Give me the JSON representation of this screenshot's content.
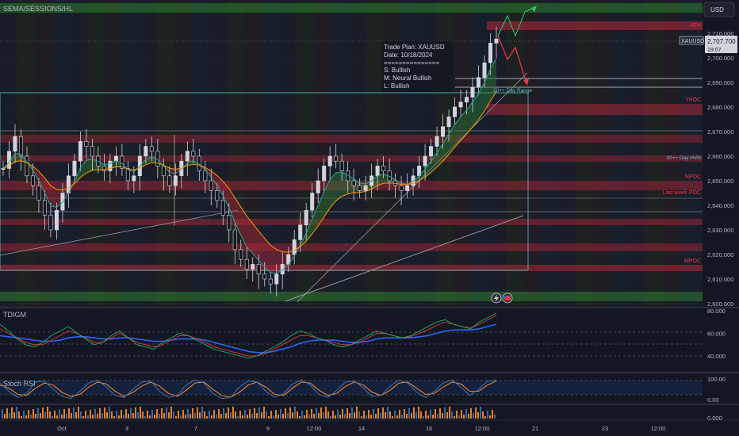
{
  "colors": {
    "bg": "#131722",
    "candle": "#d1d4dc",
    "ema_fast": "#26a69a",
    "ema_slow": "#ff9800",
    "red_zone": "#b2283a",
    "green_zone": "#2e7d32",
    "grid": "#2a2e39",
    "axis_text": "#b2b5be",
    "label_red": "#f23645",
    "label_teal": "#5fc5d0",
    "tdi_green": "#22ab6b",
    "tdi_red": "#e53935",
    "tdi_blue": "#2962ff",
    "stoch_blue": "#3f72af",
    "stoch_orange": "#ff8c2a"
  },
  "header": {
    "indicator_label": "SEMA/SESSIONS/HL",
    "currency_button": "USD"
  },
  "trade_plan": {
    "line1": "Trade Plan: XAUUSD",
    "line2": "Date: 10/18/2024",
    "line3": "===============",
    "line4": "S: Bullish",
    "line5": "M: Neural Bullish",
    "line6": "L: Bullish"
  },
  "price_badge": {
    "symbol": "XAUUSD",
    "price": "2,707.700",
    "countdown": "19:07"
  },
  "level_labels": {
    "ath": "ATH",
    "ypoc": "YPOC",
    "day_hvn": "20++ Day HVN",
    "npoc": "NPOC",
    "last_week_poc": "Last week POC",
    "mpoc": "MPOC",
    "day_range": "20++ Day Range"
  },
  "panes": {
    "tdi_label": "TDIGM",
    "stoch_label": "Stoch RSI"
  },
  "chart_data": {
    "type": "candlestick",
    "symbol": "XAUUSD",
    "price_axis": {
      "ticks": [
        "2,710.000",
        "2,700.000",
        "2,690.000",
        "2,680.000",
        "2,670.000",
        "2,660.000",
        "2,650.000",
        "2,640.000",
        "2,630.000",
        "2,620.000",
        "2,610.000",
        "2,600.000"
      ],
      "ylim": [
        2598,
        2716
      ]
    },
    "time_axis": [
      "Oct",
      "3",
      "7",
      "9",
      "12:00",
      "14",
      "16",
      "12:00",
      "21",
      "23",
      "12:00"
    ],
    "close_series": [
      2655,
      2662,
      2668,
      2660,
      2652,
      2648,
      2642,
      2636,
      2630,
      2638,
      2645,
      2652,
      2658,
      2666,
      2664,
      2660,
      2656,
      2654,
      2658,
      2660,
      2655,
      2650,
      2652,
      2660,
      2664,
      2662,
      2656,
      2652,
      2648,
      2652,
      2658,
      2662,
      2660,
      2654,
      2650,
      2646,
      2642,
      2636,
      2630,
      2622,
      2618,
      2614,
      2616,
      2612,
      2610,
      2608,
      2612,
      2616,
      2620,
      2626,
      2632,
      2638,
      2645,
      2650,
      2656,
      2660,
      2658,
      2654,
      2650,
      2648,
      2646,
      2648,
      2652,
      2656,
      2654,
      2650,
      2648,
      2646,
      2648,
      2652,
      2656,
      2660,
      2664,
      2668,
      2672,
      2676,
      2680,
      2682,
      2684,
      2688,
      2692,
      2698,
      2706,
      2707.7
    ],
    "tdi_axis": [
      "80.000",
      "60.000",
      "40.000"
    ],
    "tdi_green": [
      68,
      62,
      55,
      50,
      48,
      52,
      58,
      62,
      66,
      60,
      55,
      50,
      52,
      58,
      62,
      56,
      50,
      48,
      46,
      52,
      56,
      60,
      58,
      54,
      50,
      46,
      44,
      42,
      40,
      38,
      40,
      44,
      48,
      52,
      58,
      62,
      60,
      56,
      54,
      50,
      48,
      50,
      54,
      58,
      62,
      60,
      58,
      56,
      58,
      62,
      66,
      70,
      72,
      68,
      66,
      64,
      70,
      74,
      78
    ],
    "tdi_red": [
      64,
      60,
      56,
      52,
      50,
      50,
      54,
      58,
      62,
      60,
      56,
      52,
      52,
      56,
      60,
      56,
      52,
      50,
      48,
      50,
      54,
      58,
      58,
      55,
      52,
      48,
      46,
      44,
      42,
      40,
      40,
      42,
      46,
      50,
      54,
      58,
      58,
      56,
      54,
      52,
      50,
      50,
      52,
      56,
      60,
      60,
      58,
      56,
      57,
      60,
      63,
      67,
      70,
      68,
      66,
      65,
      68,
      72,
      76
    ],
    "tdi_blue": [
      58,
      57,
      56,
      55,
      54,
      53,
      53,
      54,
      56,
      57,
      57,
      56,
      55,
      55,
      56,
      56,
      55,
      54,
      53,
      53,
      54,
      55,
      55,
      55,
      54,
      52,
      50,
      48,
      46,
      44,
      43,
      43,
      44,
      46,
      48,
      51,
      53,
      54,
      54,
      54,
      53,
      52,
      52,
      53,
      55,
      56,
      56,
      56,
      56,
      57,
      58,
      60,
      62,
      63,
      63,
      63,
      64,
      66,
      68
    ],
    "stoch_axis": [
      "100.00",
      "0.00"
    ],
    "stoch_k": [
      80,
      40,
      10,
      30,
      85,
      90,
      50,
      15,
      5,
      40,
      80,
      95,
      60,
      20,
      10,
      50,
      85,
      90,
      40,
      10,
      20,
      70,
      95,
      80,
      30,
      5,
      10,
      60,
      90,
      85,
      40,
      10,
      30,
      75,
      95,
      70,
      25,
      10,
      45,
      85,
      90,
      55,
      15,
      20,
      65,
      95,
      80,
      35,
      10,
      40,
      80,
      95,
      60,
      20,
      50,
      90,
      95
    ],
    "stoch_d": [
      70,
      55,
      25,
      20,
      55,
      80,
      70,
      35,
      15,
      25,
      60,
      85,
      75,
      40,
      15,
      35,
      65,
      85,
      65,
      30,
      15,
      45,
      80,
      85,
      50,
      20,
      10,
      35,
      70,
      85,
      60,
      25,
      20,
      55,
      85,
      80,
      45,
      20,
      30,
      65,
      85,
      70,
      35,
      20,
      45,
      80,
      85,
      55,
      25,
      30,
      60,
      85,
      75,
      40,
      40,
      70,
      90
    ],
    "volume_axis": [
      "0.000"
    ]
  }
}
